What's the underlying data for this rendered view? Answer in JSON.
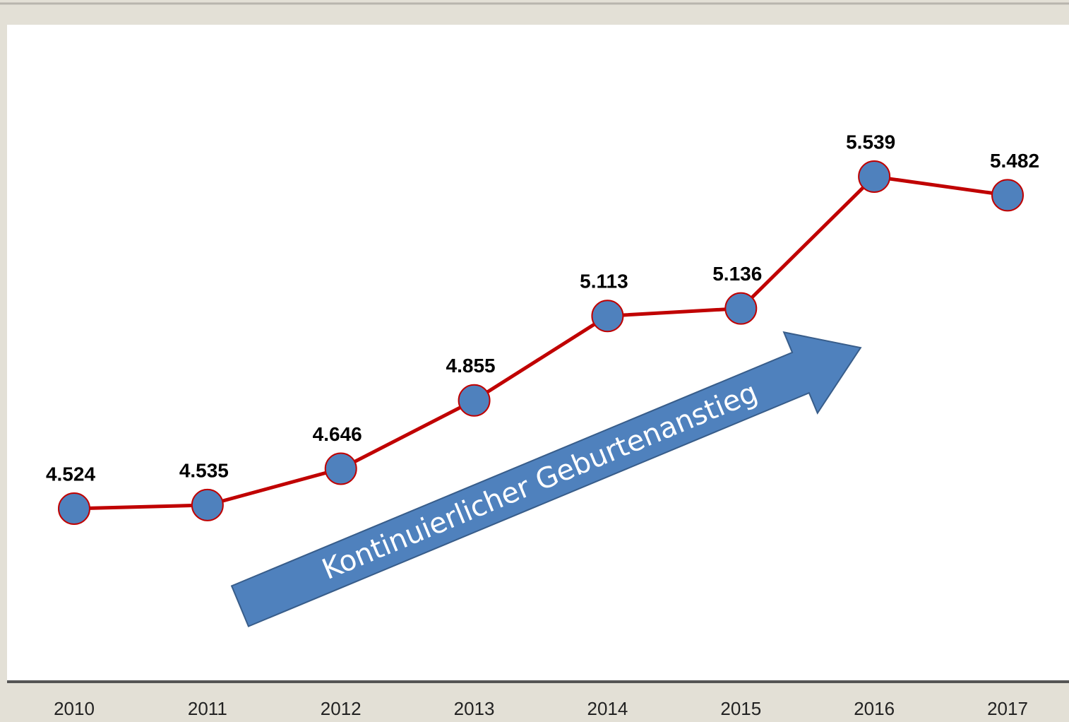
{
  "chart_data": {
    "type": "line",
    "categories": [
      "2010",
      "2011",
      "2012",
      "2013",
      "2014",
      "2015",
      "2016",
      "2017"
    ],
    "values": [
      4524,
      4535,
      4646,
      4855,
      5113,
      5136,
      5539,
      5482
    ],
    "value_labels": [
      "4.524",
      "4.535",
      "4.646",
      "4.855",
      "5.113",
      "5.136",
      "5.539",
      "5.482"
    ],
    "color": "#c00000",
    "marker_color": "#4f81bd",
    "annotation": "Kontinuierlicher Geburtenanstieg"
  }
}
